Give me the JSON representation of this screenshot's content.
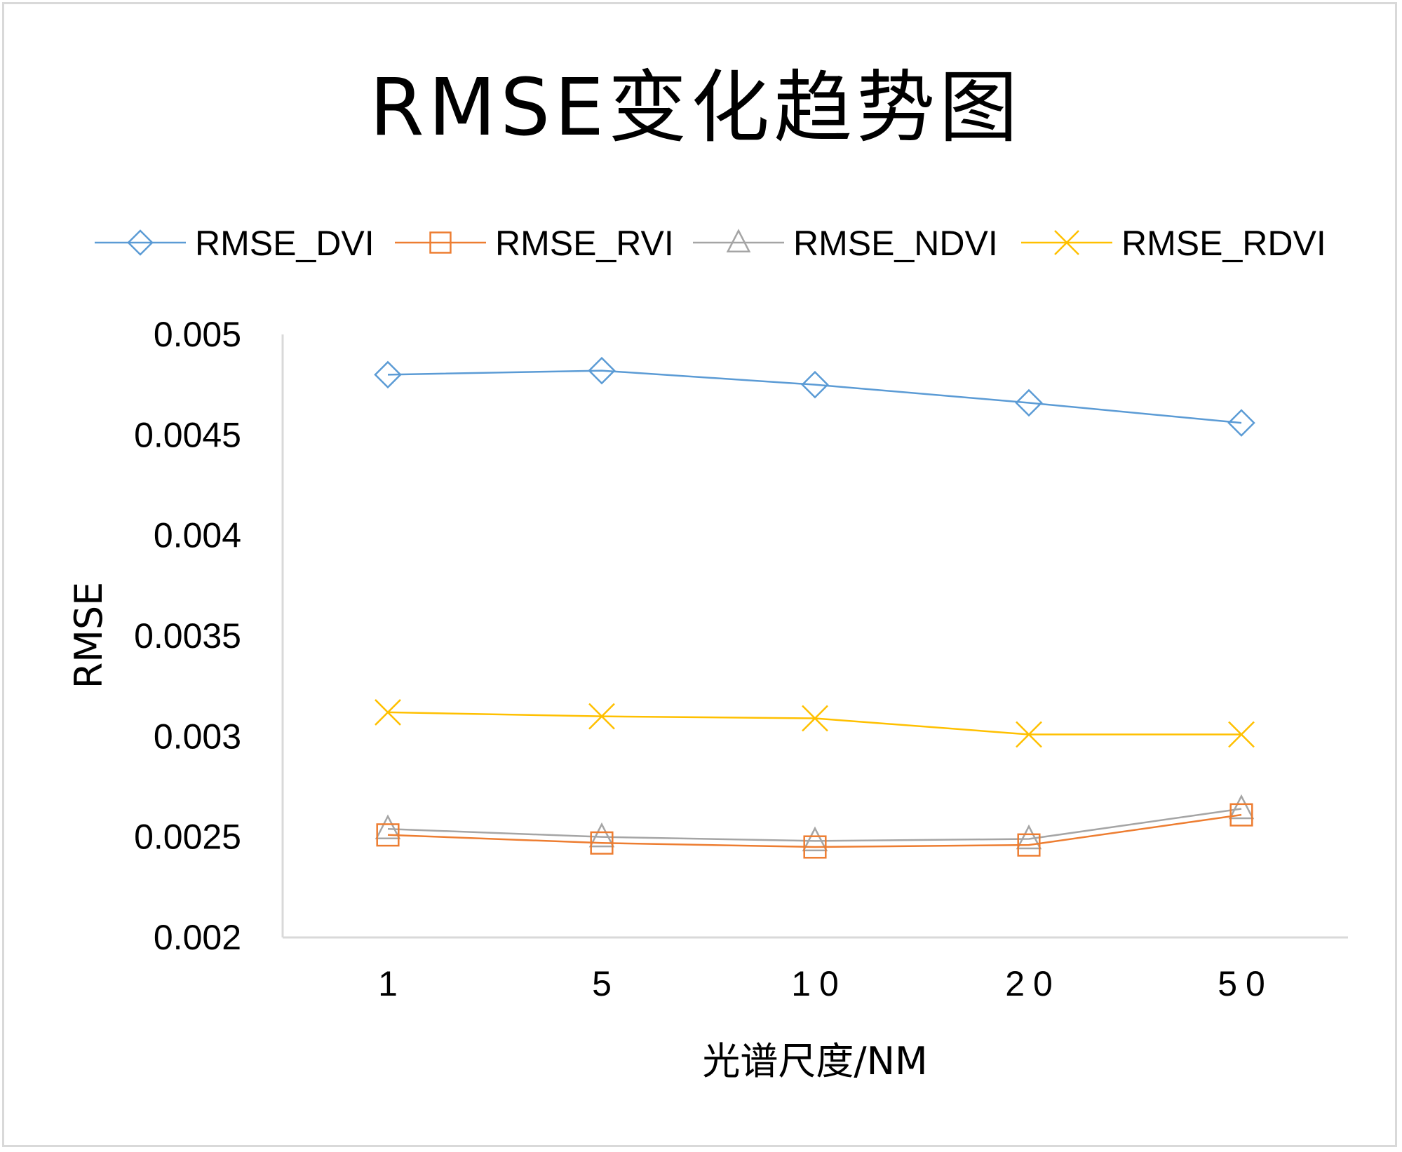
{
  "chart_data": {
    "type": "line",
    "title": "RMSE变化趋势图",
    "xlabel": "光谱尺度/NM",
    "ylabel": "RMSE",
    "categories": [
      "1",
      "5",
      "10",
      "20",
      "50"
    ],
    "ylim": [
      0.002,
      0.005
    ],
    "yticks": [
      "0.005",
      "0.0045",
      "0.004",
      "0.0035",
      "0.003",
      "0.0025",
      "0.002"
    ],
    "legend_position": "top",
    "grid": false,
    "series": [
      {
        "name": "RMSE_DVI",
        "color": "#5b9bd5",
        "marker": "diamond",
        "values": [
          0.0048,
          0.00482,
          0.00475,
          0.00466,
          0.00456
        ]
      },
      {
        "name": "RMSE_RVI",
        "color": "#ed7d31",
        "marker": "square",
        "values": [
          0.00251,
          0.00247,
          0.00245,
          0.00246,
          0.00261
        ]
      },
      {
        "name": "RMSE_NDVI",
        "color": "#a5a5a5",
        "marker": "triangle",
        "values": [
          0.00254,
          0.0025,
          0.00248,
          0.00249,
          0.00264
        ]
      },
      {
        "name": "RMSE_RDVI",
        "color": "#ffc000",
        "marker": "x",
        "values": [
          0.00312,
          0.0031,
          0.00309,
          0.00301,
          0.00301
        ]
      }
    ]
  }
}
